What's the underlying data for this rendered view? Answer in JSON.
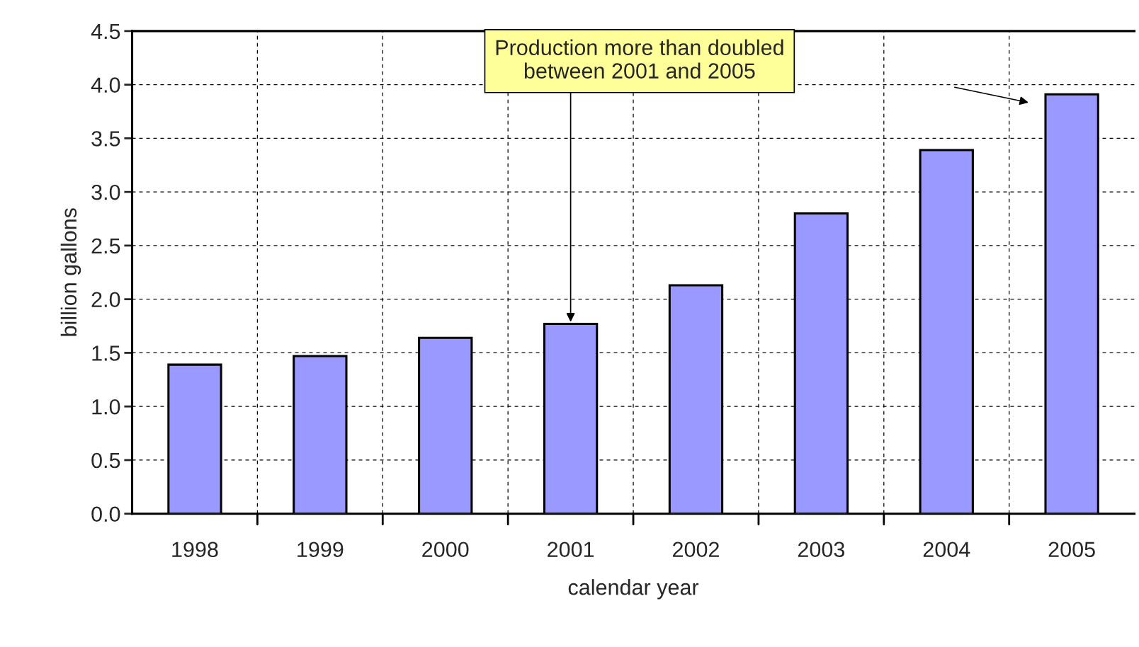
{
  "chart_data": {
    "type": "bar",
    "xlabel": "calendar year",
    "ylabel": "billion gallons",
    "categories": [
      "1998",
      "1999",
      "2000",
      "2001",
      "2002",
      "2003",
      "2004",
      "2005"
    ],
    "values": [
      1.39,
      1.47,
      1.64,
      1.77,
      2.13,
      2.8,
      3.39,
      3.91
    ],
    "color": "#9999ff",
    "ylim": [
      0,
      4.5
    ],
    "yticks": [
      {
        "value": 0,
        "label": "0.0"
      },
      {
        "value": 0.5,
        "label": "0.5"
      },
      {
        "value": 1,
        "label": "1.0"
      },
      {
        "value": 1.5,
        "label": "1.5"
      },
      {
        "value": 2,
        "label": "2.0"
      },
      {
        "value": 2.5,
        "label": "2.5"
      },
      {
        "value": 3,
        "label": "3.0"
      },
      {
        "value": 3.5,
        "label": "3.5"
      },
      {
        "value": 4,
        "label": "4.0"
      },
      {
        "value": 4.5,
        "label": "4.5"
      }
    ],
    "grid": true,
    "annotations": [
      {
        "text": "Production more than doubled\nbetween 2001 and 2005",
        "x": "2001",
        "y": 1.77
      }
    ]
  }
}
